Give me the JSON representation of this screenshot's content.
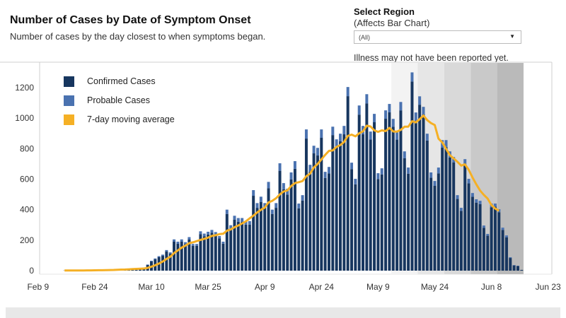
{
  "header": {
    "title": "Number of Cases by Date of Symptom Onset",
    "subtitle": "Number of cases by the day closest to when symptoms began."
  },
  "region_filter": {
    "label": "Select Region",
    "sublabel": "(Affects Bar Chart)",
    "selected": "(All)",
    "note": "Illness may not have been reported yet."
  },
  "colors": {
    "confirmed": "#17365f",
    "probable": "#4a72b0",
    "moving_average": "#f5b025",
    "reporting_lag_bands": [
      "#f3f3f3",
      "#e6e6e6",
      "#d9d9d9",
      "#c9c9c9",
      "#bababa"
    ]
  },
  "chart_data": {
    "type": "bar",
    "stacked": true,
    "start_date": "2020-02-16",
    "ylim": [
      0,
      1300
    ],
    "y_ticks": [
      "0",
      "200",
      "400",
      "600",
      "800",
      "1000",
      "1200"
    ],
    "x_ticks": [
      {
        "label": "Feb 9",
        "date": "2020-02-09"
      },
      {
        "label": "Feb 24",
        "date": "2020-02-24"
      },
      {
        "label": "Mar 10",
        "date": "2020-03-10"
      },
      {
        "label": "Mar 25",
        "date": "2020-03-25"
      },
      {
        "label": "Apr 9",
        "date": "2020-04-09"
      },
      {
        "label": "Apr 24",
        "date": "2020-04-24"
      },
      {
        "label": "May 9",
        "date": "2020-05-09"
      },
      {
        "label": "May 24",
        "date": "2020-05-24"
      },
      {
        "label": "Jun 8",
        "date": "2020-06-08"
      },
      {
        "label": "Jun 23",
        "date": "2020-06-23"
      }
    ],
    "grid": false,
    "legend": {
      "placement": "top-left",
      "entries": [
        "Confirmed Cases",
        "Probable Cases",
        "7-day moving average"
      ]
    },
    "reporting_lag_bands": [
      "2020-05-13",
      "2020-05-20",
      "2020-05-27",
      "2020-06-03",
      "2020-06-10",
      "2020-06-17"
    ],
    "series": [
      {
        "name": "Confirmed Cases",
        "values": [
          1,
          1,
          2,
          1,
          2,
          2,
          3,
          2,
          4,
          5,
          3,
          5,
          5,
          7,
          9,
          11,
          8,
          13,
          15,
          11,
          14,
          18,
          37,
          60,
          74,
          88,
          97,
          125,
          111,
          190,
          176,
          190,
          174,
          204,
          163,
          163,
          240,
          226,
          237,
          248,
          235,
          211,
          177,
          372,
          277,
          335,
          321,
          321,
          302,
          302,
          491,
          412,
          451,
          412,
          541,
          372,
          412,
          655,
          534,
          499,
          599,
          668,
          409,
          460,
          866,
          649,
          769,
          755,
          871,
          608,
          638,
          889,
          811,
          848,
          894,
          1144,
          666,
          566,
          1023,
          894,
          1097,
          860,
          973,
          601,
          631,
          996,
          1038,
          943,
          859,
          1051,
          737,
          636,
          1240,
          982,
          1088,
          1024,
          853,
          609,
          556,
          638,
          806,
          811,
          742,
          710,
          470,
          392,
          696,
          572,
          484,
          446,
          436,
          281,
          229,
          415,
          420,
          383,
          267,
          219,
          83,
          34,
          30,
          5
        ]
      },
      {
        "name": "Probable Cases",
        "values": [
          0,
          0,
          0,
          0,
          0,
          0,
          0,
          0,
          0,
          0,
          0,
          1,
          0,
          1,
          1,
          1,
          0,
          1,
          1,
          1,
          1,
          2,
          3,
          5,
          6,
          7,
          8,
          10,
          9,
          15,
          14,
          15,
          13,
          16,
          12,
          12,
          18,
          17,
          18,
          19,
          18,
          16,
          13,
          28,
          21,
          25,
          24,
          24,
          23,
          23,
          37,
          31,
          34,
          31,
          41,
          28,
          31,
          49,
          40,
          38,
          45,
          50,
          31,
          35,
          60,
          45,
          50,
          50,
          55,
          40,
          42,
          55,
          50,
          50,
          55,
          60,
          42,
          36,
          60,
          55,
          60,
          52,
          55,
          38,
          40,
          55,
          55,
          52,
          48,
          55,
          45,
          40,
          60,
          55,
          55,
          50,
          45,
          35,
          32,
          38,
          50,
          45,
          40,
          35,
          25,
          20,
          35,
          30,
          25,
          22,
          22,
          15,
          12,
          25,
          20,
          20,
          15,
          12,
          5,
          3,
          2,
          0
        ]
      },
      {
        "name": "7-day moving average",
        "window_days": 7,
        "through": "2020-06-10"
      }
    ]
  }
}
